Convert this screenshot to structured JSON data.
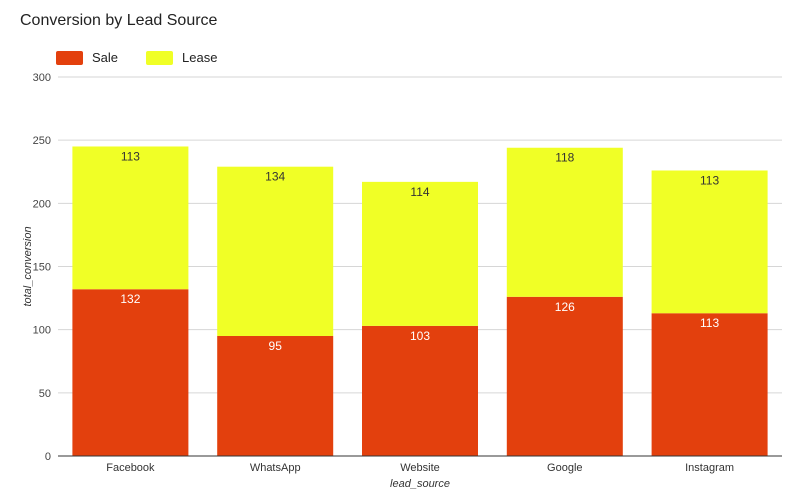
{
  "chart_data": {
    "type": "bar",
    "stacked": true,
    "title": "Conversion by Lead Source",
    "xlabel": "lead_source",
    "ylabel": "total_conversion",
    "categories": [
      "Facebook",
      "WhatsApp",
      "Website",
      "Google",
      "Instagram"
    ],
    "series": [
      {
        "name": "Sale",
        "color": "#e3400d",
        "values": [
          132,
          95,
          103,
          126,
          113
        ]
      },
      {
        "name": "Lease",
        "color": "#f0ff26",
        "values": [
          113,
          134,
          114,
          118,
          113
        ]
      }
    ],
    "ylim": [
      0,
      300
    ],
    "yticks": [
      0,
      50,
      100,
      150,
      200,
      250,
      300
    ],
    "grid": true,
    "legend_position": "top-left"
  }
}
